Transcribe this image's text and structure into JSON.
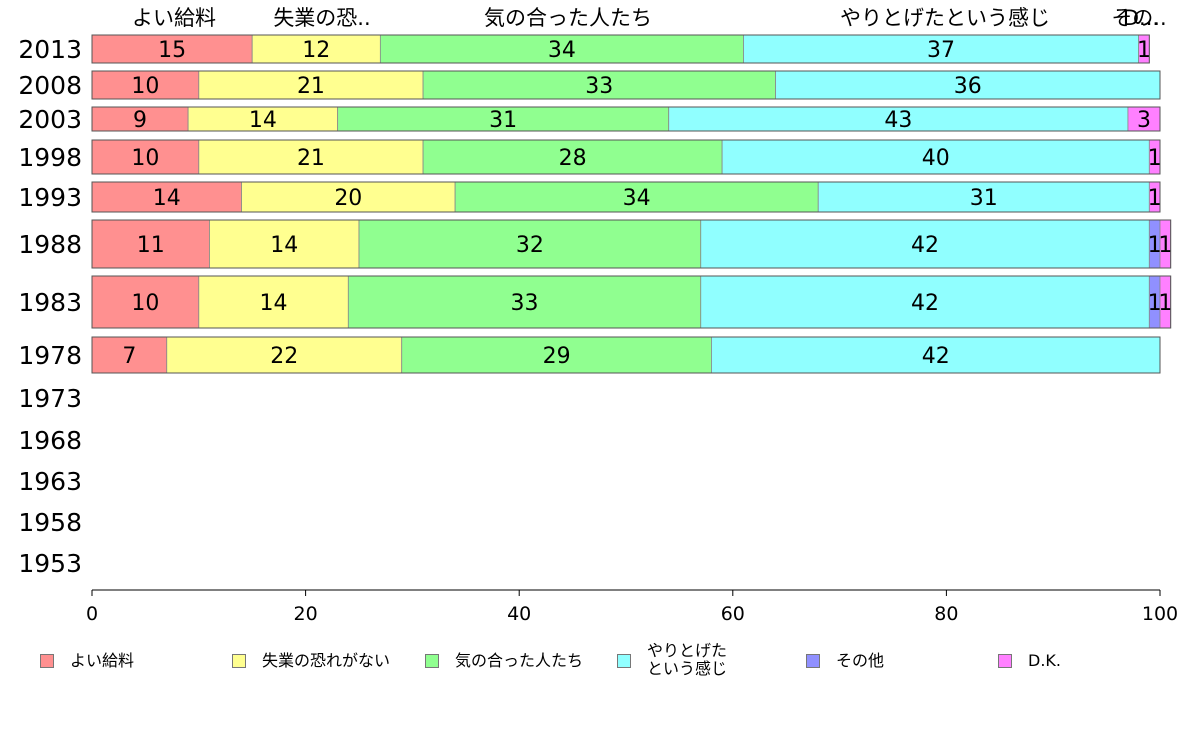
{
  "chart_data": {
    "type": "bar",
    "orientation": "horizontal",
    "stacked": true,
    "categories": [
      "2013",
      "2008",
      "2003",
      "1998",
      "1993",
      "1988",
      "1983",
      "1978",
      "1973",
      "1968",
      "1963",
      "1958",
      "1953"
    ],
    "series": [
      {
        "name": "よい給料",
        "top_label": "よい給料",
        "color": "#ff9090",
        "values": [
          15,
          10,
          9,
          10,
          14,
          11,
          10,
          7,
          null,
          null,
          null,
          null,
          null
        ]
      },
      {
        "name": "失業の恐れがない",
        "top_label": "失業の恐..",
        "color": "#ffff90",
        "values": [
          12,
          21,
          14,
          21,
          20,
          14,
          14,
          22,
          null,
          null,
          null,
          null,
          null
        ]
      },
      {
        "name": "気の合った人たち",
        "top_label": "気の合った人たち",
        "color": "#90ff90",
        "values": [
          34,
          33,
          31,
          28,
          34,
          32,
          33,
          29,
          null,
          null,
          null,
          null,
          null
        ]
      },
      {
        "name": "やりとげた\nという感じ",
        "top_label": "やりとげたという感じ",
        "color": "#90ffff",
        "values": [
          37,
          36,
          43,
          40,
          31,
          42,
          42,
          42,
          null,
          null,
          null,
          null,
          null
        ]
      },
      {
        "name": "その他",
        "top_label": "その..",
        "color": "#9090ff",
        "values": [
          0,
          0,
          0,
          0,
          0,
          1,
          1,
          0,
          null,
          null,
          null,
          null,
          null
        ]
      },
      {
        "name": "D.K.",
        "top_label": "D...",
        "color": "#ff80ff",
        "values": [
          1,
          0,
          3,
          1,
          1,
          1,
          1,
          0,
          null,
          null,
          null,
          null,
          null
        ]
      }
    ],
    "xlim": [
      0,
      100
    ],
    "xticks": [
      "0",
      "20",
      "40",
      "60",
      "80",
      "100"
    ],
    "grid": false,
    "legend": "bottom"
  }
}
